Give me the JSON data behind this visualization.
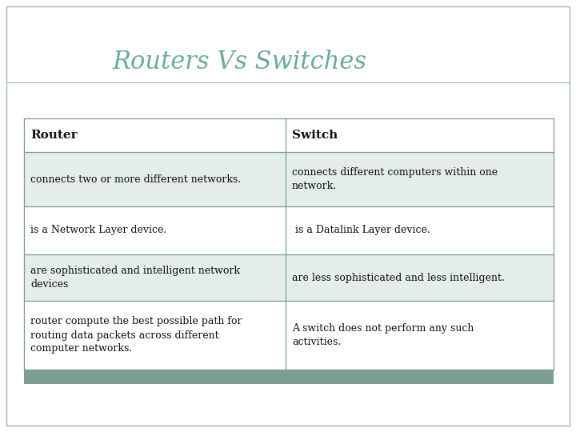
{
  "title": "Routers Vs Switches",
  "title_color": "#6aaba0",
  "title_fontsize": 22,
  "background_color": "#ffffff",
  "slide_border_color": "#a0b8b0",
  "header_bg": "#ffffff",
  "row_bg_odd": "#e4edea",
  "row_bg_even": "#ffffff",
  "border_color": "#7a9e94",
  "footer_bg": "#7a9e94",
  "col_header": [
    "Router",
    "Switch"
  ],
  "header_fontsize": 11,
  "body_fontsize": 9,
  "rows": [
    [
      "connects two or more different networks.",
      "connects different computers within one\nnetwork."
    ],
    [
      "is a Network Layer device.",
      " is a Datalink Layer device."
    ],
    [
      "are sophisticated and intelligent network\ndevices",
      "are less sophisticated and less intelligent."
    ],
    [
      "router compute the best possible path for\nrouting data packets across different\ncomputer networks.",
      "A switch does not perform any such\nactivities."
    ]
  ]
}
